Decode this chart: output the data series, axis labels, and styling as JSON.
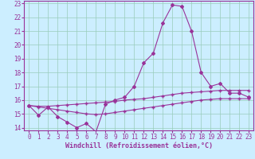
{
  "xlabel": "Windchill (Refroidissement éolien,°C)",
  "background_color": "#cceeff",
  "grid_color": "#99ccbb",
  "line_color": "#993399",
  "xlim": [
    -0.5,
    23.5
  ],
  "ylim": [
    13.8,
    23.2
  ],
  "xticks": [
    0,
    1,
    2,
    3,
    4,
    5,
    6,
    7,
    8,
    9,
    10,
    11,
    12,
    13,
    14,
    15,
    16,
    17,
    18,
    19,
    20,
    21,
    22,
    23
  ],
  "yticks": [
    14,
    15,
    16,
    17,
    18,
    19,
    20,
    21,
    22,
    23
  ],
  "main_x": [
    0,
    1,
    2,
    3,
    4,
    5,
    6,
    7,
    8,
    9,
    10,
    11,
    12,
    13,
    14,
    15,
    16,
    17,
    18,
    19,
    20,
    21,
    22,
    23
  ],
  "main_y": [
    15.6,
    14.9,
    15.5,
    14.8,
    14.4,
    14.0,
    14.3,
    13.7,
    15.7,
    16.0,
    16.2,
    17.0,
    18.7,
    19.4,
    21.6,
    22.9,
    22.8,
    21.0,
    18.0,
    17.0,
    17.2,
    16.5,
    16.5,
    16.2
  ],
  "line1_x": [
    0,
    1,
    2,
    3,
    4,
    5,
    6,
    7,
    8,
    9,
    10,
    11,
    12,
    13,
    14,
    15,
    16,
    17,
    18,
    19,
    20,
    21,
    22,
    23
  ],
  "line1_y": [
    15.6,
    15.55,
    15.55,
    15.6,
    15.65,
    15.7,
    15.75,
    15.8,
    15.85,
    15.9,
    16.0,
    16.05,
    16.1,
    16.2,
    16.3,
    16.4,
    16.5,
    16.55,
    16.6,
    16.65,
    16.7,
    16.7,
    16.7,
    16.7
  ],
  "line2_x": [
    0,
    1,
    2,
    3,
    4,
    5,
    6,
    7,
    8,
    9,
    10,
    11,
    12,
    13,
    14,
    15,
    16,
    17,
    18,
    19,
    20,
    21,
    22,
    23
  ],
  "line2_y": [
    15.6,
    15.5,
    15.4,
    15.3,
    15.2,
    15.1,
    15.0,
    14.95,
    15.0,
    15.1,
    15.2,
    15.3,
    15.4,
    15.5,
    15.6,
    15.7,
    15.8,
    15.9,
    16.0,
    16.05,
    16.1,
    16.1,
    16.1,
    16.1
  ],
  "xlabel_fontsize": 6,
  "tick_fontsize": 5.5,
  "lw": 0.8,
  "marker_size": 2.0
}
